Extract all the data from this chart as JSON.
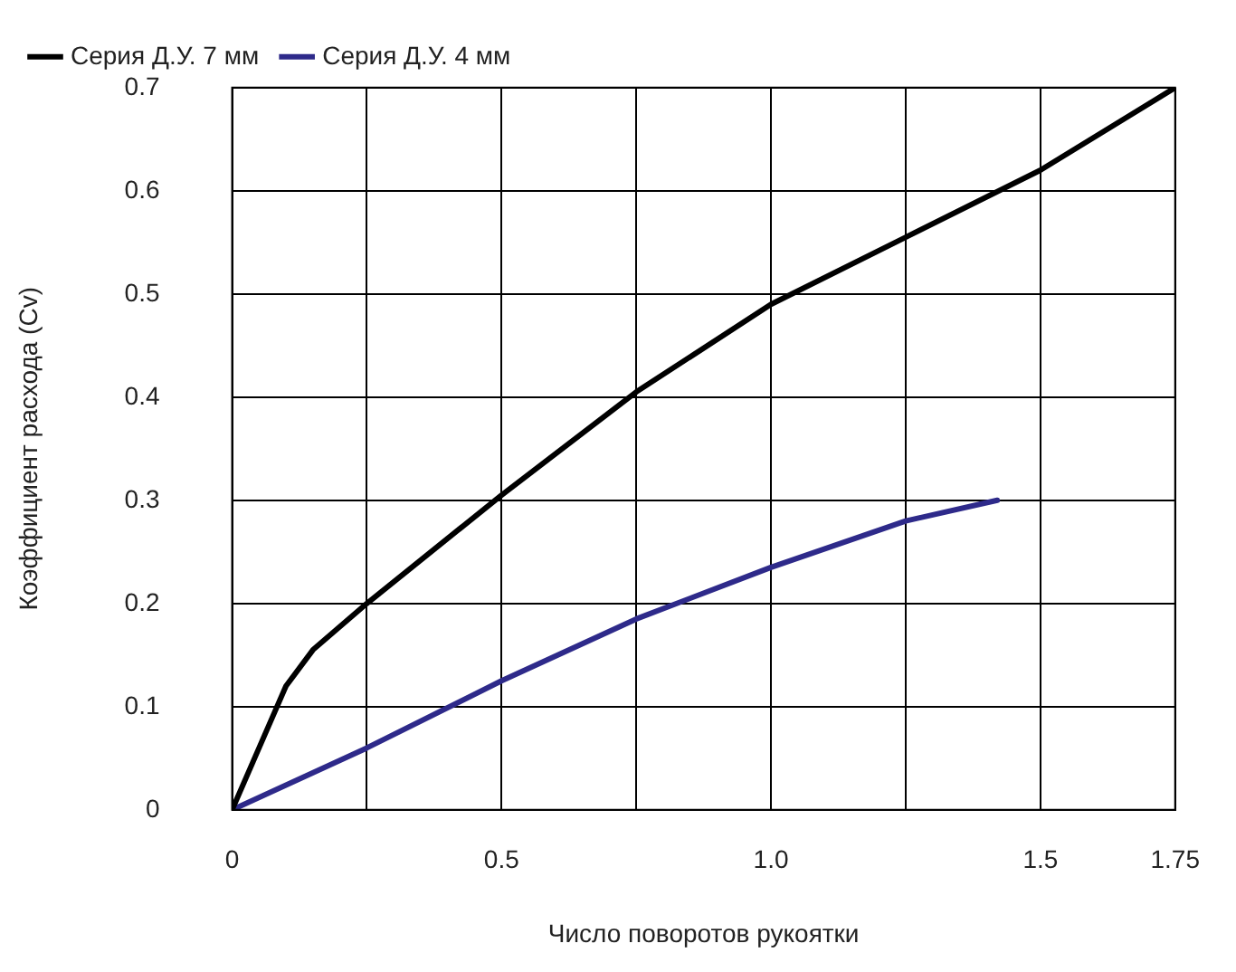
{
  "chart_data": {
    "type": "line",
    "xlabel": "Число поворотов рукоятки",
    "ylabel": "Коэффициент расхода (Cv)",
    "xlim": [
      0,
      1.75
    ],
    "xticks": [
      0,
      {
        "value": 0.25,
        "label": null
      },
      0.5,
      {
        "value": 0.75,
        "label": null
      },
      {
        "value": 1,
        "label": "1.0"
      },
      {
        "value": 1.25,
        "label": null
      },
      1.5,
      1.75
    ],
    "ylim": [
      0,
      0.7
    ],
    "yticks": [
      0,
      0.1,
      0.2,
      0.3,
      0.4,
      0.5,
      0.6,
      0.7
    ],
    "grid": true,
    "legend": "top left",
    "marker": "none",
    "line_style": "solid",
    "series": [
      {
        "name": "Серия Д.У. 7 мм",
        "color": "#000000",
        "x": [
          0,
          0.05,
          0.1,
          0.15,
          0.25,
          0.5,
          0.75,
          1.0,
          1.25,
          1.5,
          1.75
        ],
        "values": [
          0,
          0.06,
          0.12,
          0.155,
          0.2,
          0.305,
          0.405,
          0.49,
          0.555,
          0.62,
          0.7
        ]
      },
      {
        "name": "Серия Д.У. 4 мм",
        "color": "#2e2a8a",
        "x": [
          0,
          0.25,
          0.5,
          0.75,
          1.0,
          1.25,
          1.42
        ],
        "values": [
          0,
          0.06,
          0.125,
          0.185,
          0.235,
          0.28,
          0.3
        ]
      }
    ]
  }
}
